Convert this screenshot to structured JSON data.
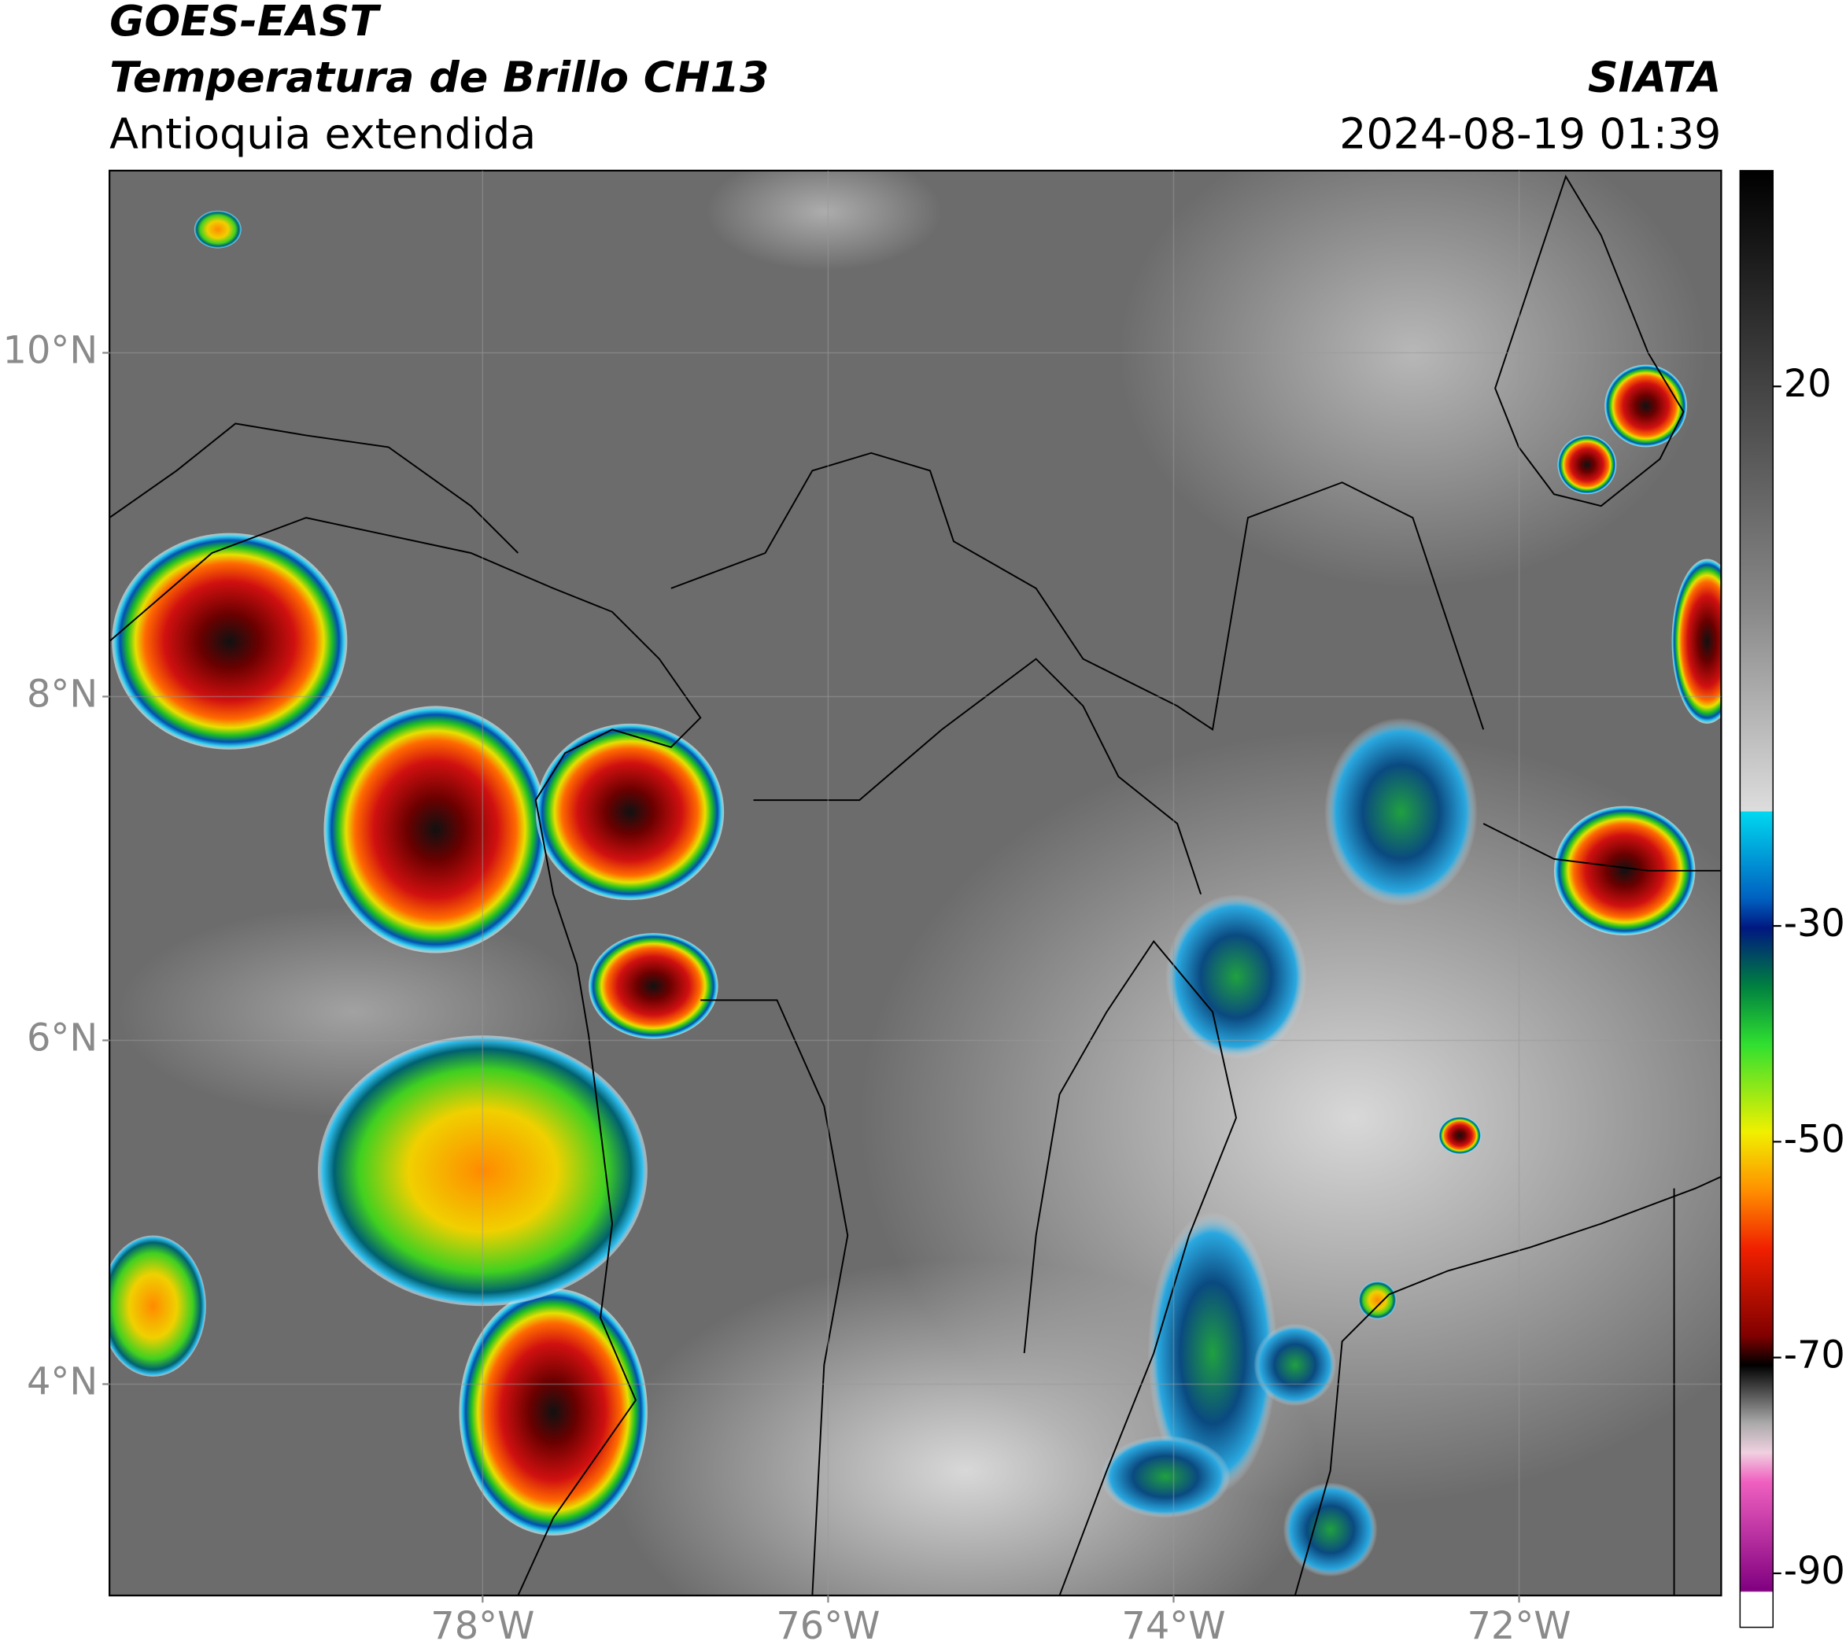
{
  "header": {
    "title": "GOES-EAST",
    "subtitle": "Temperatura de Brillo CH13",
    "region": "Antioquia extendida",
    "source": "SIATA",
    "timestamp": "2024-08-19 01:39"
  },
  "map": {
    "xlim": [
      -80.16,
      -70.83
    ],
    "ylim": [
      2.77,
      11.06
    ],
    "xticks": [
      {
        "value": -78,
        "label": "78°W"
      },
      {
        "value": -76,
        "label": "76°W"
      },
      {
        "value": -74,
        "label": "74°W"
      },
      {
        "value": -72,
        "label": "72°W"
      }
    ],
    "yticks": [
      {
        "value": 4,
        "label": "4°N"
      },
      {
        "value": 6,
        "label": "6°N"
      },
      {
        "value": 8,
        "label": "8°N"
      },
      {
        "value": 10,
        "label": "10°N"
      }
    ]
  },
  "colorbar": {
    "lim": [
      -95,
      40
    ],
    "ticks": [
      20,
      -30,
      -50,
      -70,
      -90
    ]
  }
}
